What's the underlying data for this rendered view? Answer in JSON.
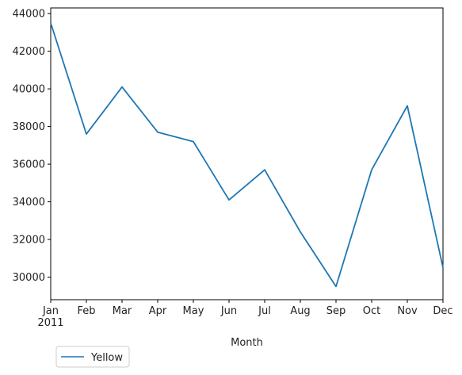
{
  "chart_data": {
    "type": "line",
    "title": "",
    "xlabel": "Month",
    "ylabel": "",
    "categories": [
      "Jan",
      "Feb",
      "Mar",
      "Apr",
      "May",
      "Jun",
      "Jul",
      "Aug",
      "Sep",
      "Oct",
      "Nov",
      "Dec"
    ],
    "year_label": "2011",
    "series": [
      {
        "name": "Yellow",
        "color": "#1f77b4",
        "values": [
          43500,
          37600,
          40100,
          37700,
          37200,
          34100,
          35700,
          32400,
          29500,
          35700,
          39100,
          30500
        ]
      }
    ],
    "ylim": [
      28800,
      44300
    ],
    "yticks": [
      30000,
      32000,
      34000,
      36000,
      38000,
      40000,
      42000,
      44000
    ],
    "grid": false,
    "legend_position": "below-left"
  }
}
